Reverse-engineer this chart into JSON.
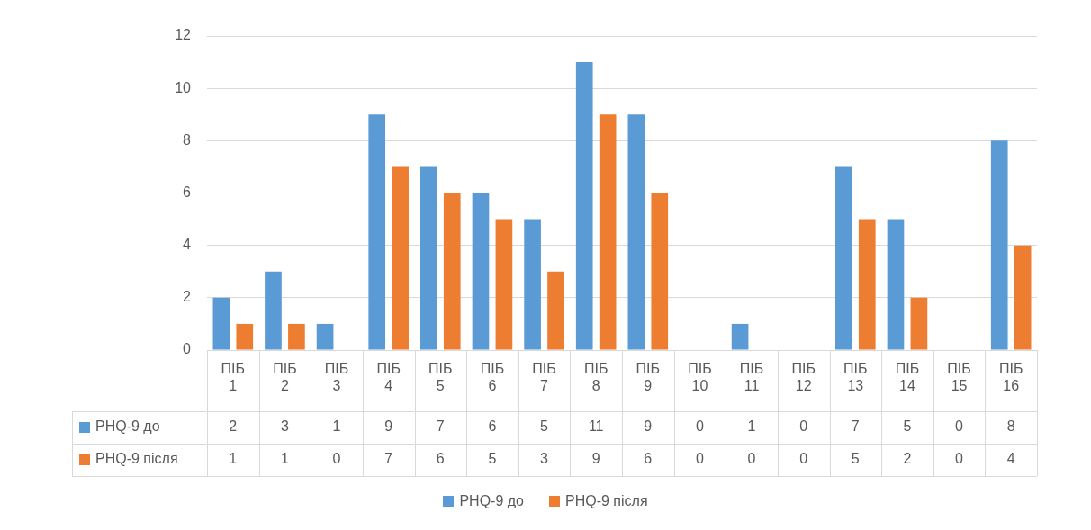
{
  "chart_data": {
    "type": "bar",
    "categories": [
      "ПІБ 1",
      "ПІБ 2",
      "ПІБ 3",
      "ПІБ 4",
      "ПІБ 5",
      "ПІБ 6",
      "ПІБ 7",
      "ПІБ 8",
      "ПІБ 9",
      "ПІБ 10",
      "ПІБ 11",
      "ПІБ 12",
      "ПІБ 13",
      "ПІБ 14",
      "ПІБ 15",
      "ПІБ 16"
    ],
    "series": [
      {
        "name": "PHQ-9 до",
        "color": "#5b9bd5",
        "values": [
          2,
          3,
          1,
          9,
          7,
          6,
          5,
          11,
          9,
          0,
          1,
          0,
          7,
          5,
          0,
          8
        ]
      },
      {
        "name": "PHQ-9 після",
        "color": "#ed7d31",
        "values": [
          1,
          1,
          0,
          7,
          6,
          5,
          3,
          9,
          6,
          0,
          0,
          0,
          5,
          2,
          0,
          4
        ]
      }
    ],
    "ylim": [
      0,
      12
    ],
    "yticks": [
      0,
      2,
      4,
      6,
      8,
      10,
      12
    ],
    "grid": "y",
    "legend": "bottom",
    "data_labels": true
  }
}
